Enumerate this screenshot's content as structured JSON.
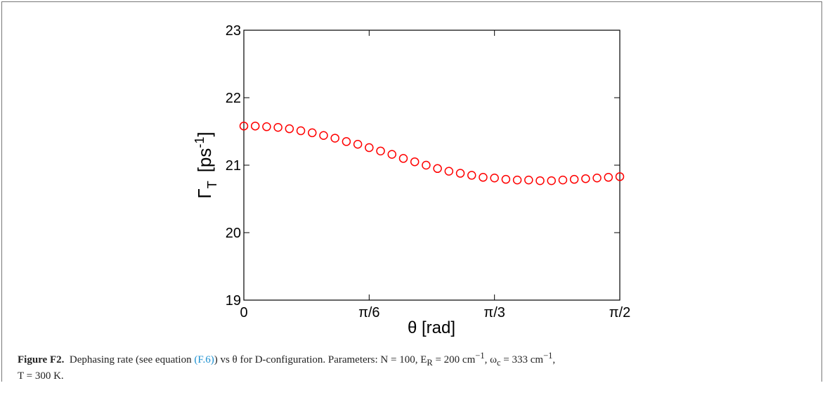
{
  "chart_data": {
    "type": "scatter",
    "x_label": "θ [rad]",
    "y_label": {
      "symbol": "Γ",
      "sub": "T",
      "unit": "[ps",
      "sup": "-1",
      "close": "]"
    },
    "x": [
      0,
      0.0476,
      0.0952,
      0.1428,
      0.1904,
      0.238,
      0.2856,
      0.3332,
      0.3808,
      0.4284,
      0.476,
      0.5236,
      0.5712,
      0.6188,
      0.6664,
      0.714,
      0.7616,
      0.8092,
      0.8568,
      0.9044,
      0.952,
      0.9996,
      1.0472,
      1.0948,
      1.1424,
      1.19,
      1.2376,
      1.2852,
      1.3328,
      1.3804,
      1.428,
      1.4756,
      1.5232,
      1.5708
    ],
    "series": [
      {
        "color": "#ff0000",
        "values": [
          21.58,
          21.58,
          21.57,
          21.56,
          21.54,
          21.51,
          21.48,
          21.44,
          21.4,
          21.35,
          21.31,
          21.26,
          21.21,
          21.16,
          21.1,
          21.05,
          21.0,
          20.95,
          20.91,
          20.88,
          20.85,
          20.82,
          20.81,
          20.79,
          20.78,
          20.78,
          20.77,
          20.77,
          20.78,
          20.79,
          20.8,
          20.81,
          20.82,
          20.83
        ]
      }
    ],
    "xlim": [
      0,
      1.5708
    ],
    "xticks": [
      0,
      {
        "value": 0.5236,
        "label": "π/6"
      },
      {
        "value": 1.0472,
        "label": "π/3"
      },
      {
        "value": 1.5708,
        "label": "π/2"
      }
    ],
    "ylim": [
      19,
      23
    ],
    "yticks": [
      19,
      20,
      21,
      22,
      23
    ]
  },
  "caption": {
    "label": "Figure F2.",
    "segments": [
      "Dephasing rate (see equation ",
      "(F.6)",
      ") vs θ for D-configuration. Parameters: N = 100, E",
      "R",
      " = 200 cm",
      "−1",
      ", ω",
      "c",
      " = 333 cm",
      "−1",
      ",",
      "T = 300 K."
    ]
  }
}
